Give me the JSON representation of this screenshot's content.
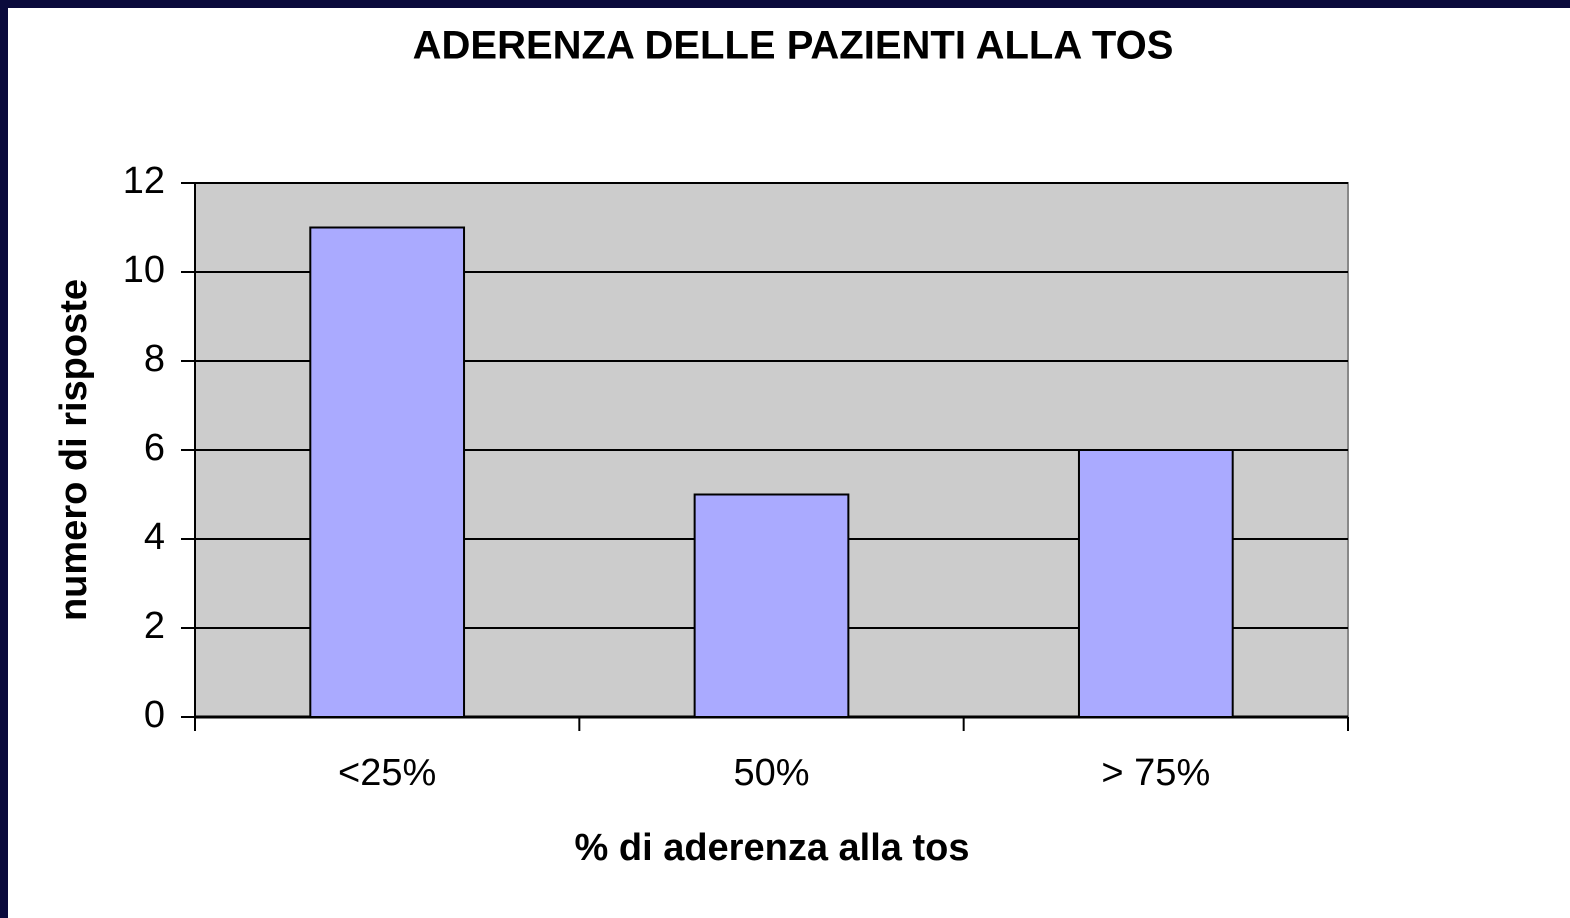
{
  "chart_data": {
    "type": "bar",
    "title": "ADERENZA DELLE PAZIENTI ALLA TOS",
    "xlabel": "%  di aderenza alla tos",
    "ylabel": "numero di risposte",
    "categories": [
      "<25%",
      "50%",
      "> 75%"
    ],
    "values": [
      11,
      5,
      6
    ],
    "color": "#aaaaff",
    "ylim": [
      0,
      12
    ],
    "yticks": [
      0,
      2,
      4,
      6,
      8,
      10,
      12
    ],
    "grid": true
  }
}
